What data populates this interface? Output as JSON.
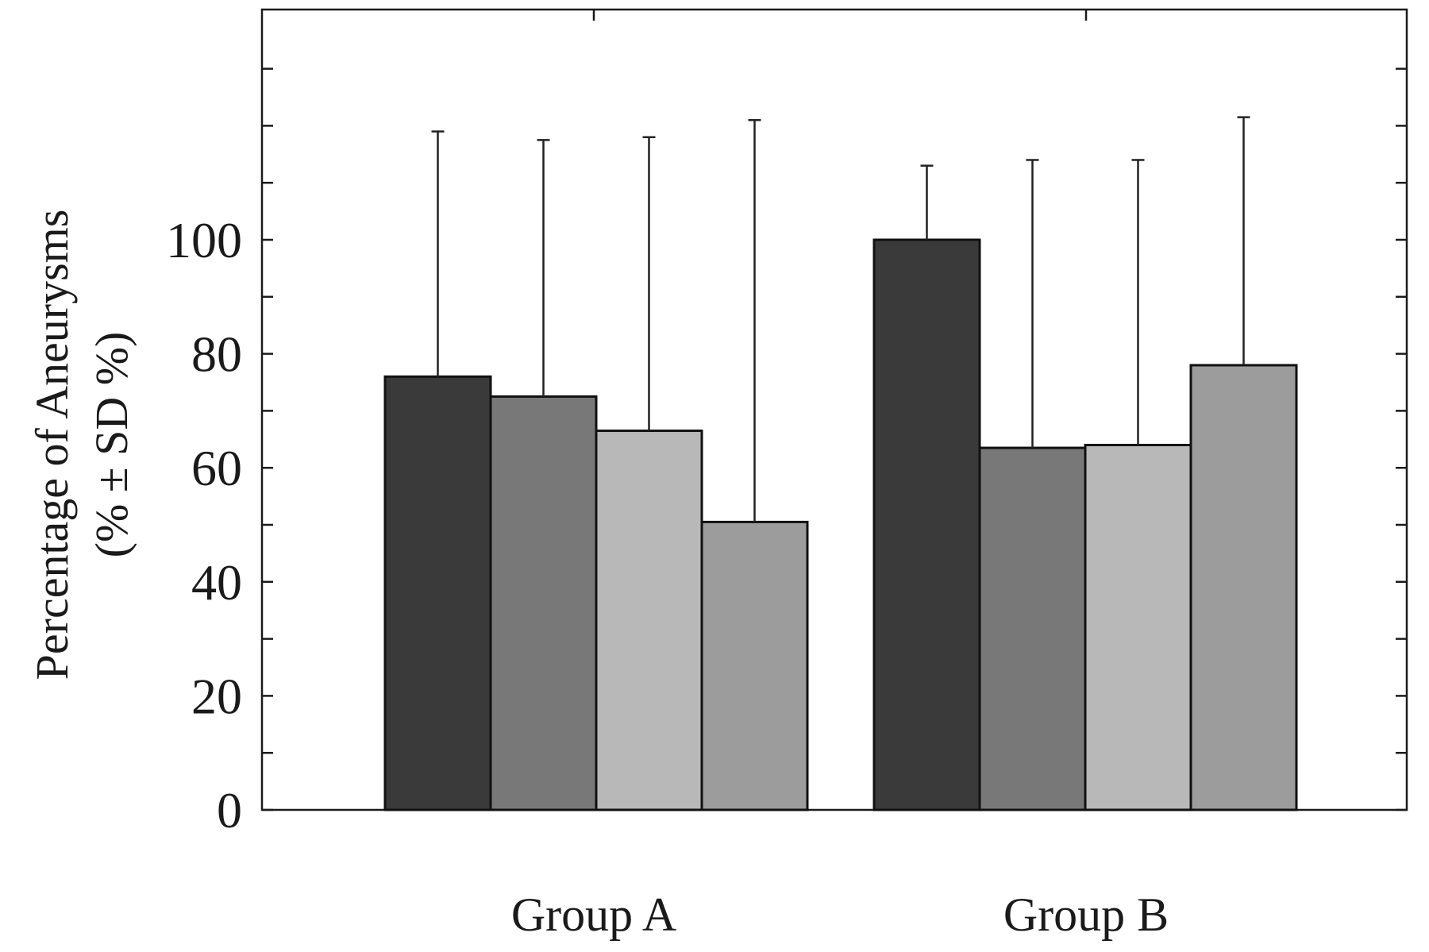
{
  "chart_data": {
    "type": "bar",
    "categories": [
      "Group A",
      "Group B"
    ],
    "series": [
      {
        "values": [
          76,
          100
        ],
        "sd_upper": [
          119,
          113
        ],
        "color": "#3a3a3a"
      },
      {
        "values": [
          72.5,
          63.5
        ],
        "sd_upper": [
          117.5,
          114
        ],
        "color": "#787878"
      },
      {
        "values": [
          66.5,
          64
        ],
        "sd_upper": [
          118,
          114
        ],
        "color": "#b8b8b8"
      },
      {
        "values": [
          50.5,
          78
        ],
        "sd_upper": [
          121,
          121.5
        ],
        "color": "#9c9c9c"
      }
    ],
    "ylabel_line1": "Percentage of Aneurysms",
    "ylabel_line2": "(% ± SD %)",
    "yticks": [
      "0",
      "20",
      "40",
      "60",
      "80",
      "100"
    ],
    "ytick_values": [
      0,
      20,
      40,
      60,
      80,
      100
    ],
    "ylim": [
      0,
      142
    ],
    "ylim_note": "axis frame extends above the last labeled tick",
    "grid": false,
    "legend": "none"
  }
}
